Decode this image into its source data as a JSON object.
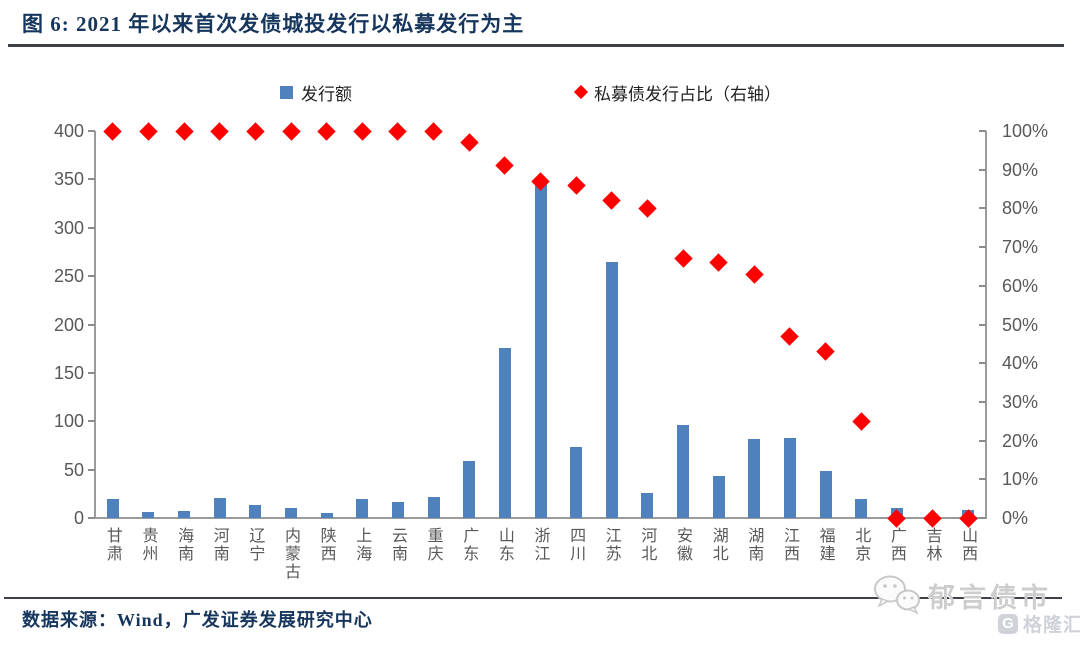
{
  "figure": {
    "title": "图 6:  2021 年以来首次发债城投发行以私募发行为主",
    "source": "数据来源：Wind，广发证券发展研究中心"
  },
  "legend": {
    "items": [
      {
        "label": "发行额",
        "marker": "square",
        "color": "#4F81BD"
      },
      {
        "label": "私募债发行占比（右轴）",
        "marker": "diamond",
        "color": "#FF0000"
      }
    ]
  },
  "watermark": {
    "brand": "郁言债市",
    "platform": "格隆汇",
    "platform_logo_letter": "G"
  },
  "chart_data": {
    "type": "bar",
    "subtype": "combo-bar-and-diamond-scatter",
    "title": "2021 年以来首次发债城投发行以私募发行为主",
    "categories": [
      "甘肃",
      "贵州",
      "海南",
      "河南",
      "辽宁",
      "内蒙古",
      "陕西",
      "上海",
      "云南",
      "重庆",
      "广东",
      "山东",
      "浙江",
      "四川",
      "江苏",
      "河北",
      "安徽",
      "湖北",
      "湖南",
      "江西",
      "福建",
      "北京",
      "广西",
      "吉林",
      "山西"
    ],
    "series": [
      {
        "name": "发行额",
        "type": "bar",
        "axis": "left",
        "color": "#4F81BD",
        "values": [
          20,
          6,
          7,
          21,
          13,
          10,
          5,
          20,
          17,
          22,
          59,
          176,
          350,
          73,
          265,
          26,
          96,
          43,
          82,
          83,
          49,
          20,
          10,
          2,
          8
        ]
      },
      {
        "name": "私募债发行占比（右轴）",
        "type": "scatter",
        "marker": "diamond",
        "axis": "right",
        "color": "#FF0000",
        "values": [
          100,
          100,
          100,
          100,
          100,
          100,
          100,
          100,
          100,
          100,
          97,
          91,
          87,
          86,
          82,
          80,
          67,
          66,
          63,
          47,
          43,
          25,
          0,
          0,
          0
        ]
      }
    ],
    "left_axis": {
      "min": 0,
      "max": 400,
      "step": 50,
      "tick_labels": [
        "400",
        "350",
        "300",
        "250",
        "200",
        "150",
        "100",
        "50",
        "0"
      ]
    },
    "right_axis": {
      "min": 0,
      "max": 100,
      "step": 10,
      "tick_labels": [
        "100%",
        "90%",
        "80%",
        "70%",
        "60%",
        "50%",
        "40%",
        "30%",
        "20%",
        "10%",
        "0%"
      ]
    },
    "grid": false,
    "legend_position": "top"
  },
  "colors": {
    "bar": "#4F81BD",
    "scatter": "#FF0000",
    "title_text": "#17365D",
    "axis_text": "#595959",
    "axis_line": "#9B9B9B",
    "rule_line": "#3D4049",
    "watermark": "#CFD3D9"
  }
}
